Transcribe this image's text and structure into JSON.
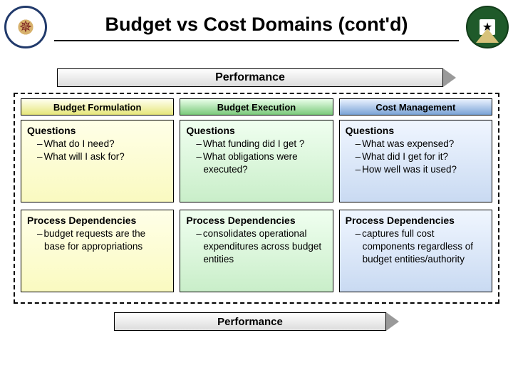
{
  "title": "Budget vs Cost Domains (cont'd)",
  "performance_label": "Performance",
  "columns": [
    {
      "header": "Budget Formulation",
      "questions_label": "Questions",
      "questions": [
        "What do I need?",
        "What will I ask for?"
      ],
      "process_label": "Process Dependencies",
      "process": [
        "budget requests are the base for appropriations"
      ]
    },
    {
      "header": "Budget Execution",
      "questions_label": "Questions",
      "questions": [
        "What funding did I get ?",
        "What obligations were executed?"
      ],
      "process_label": "Process Dependencies",
      "process": [
        "consolidates operational expenditures across budget entities"
      ]
    },
    {
      "header": "Cost Management",
      "questions_label": "Questions",
      "questions": [
        "What was expensed?",
        "What did I get for it?",
        "How well was it used?"
      ],
      "process_label": "Process Dependencies",
      "process": [
        "captures full cost components regardless of budget entities/authority"
      ]
    }
  ],
  "styling": {
    "slide_size": [
      720,
      540
    ],
    "title_fontsize": 27,
    "header_bg": [
      "#fffff0→#e6e67a",
      "#eaffea→#7ac97a",
      "#eaf2ff→#7aa3d6"
    ],
    "block_bg": [
      "#ffffe8→#fafac0",
      "#f0fff0→#c9eec9",
      "#f0f6ff→#c9daf2"
    ],
    "perf_bar_gradient": "#fefefe→#dcdcdc",
    "dashed_border_color": "#000000",
    "body_fontsize": 13.5
  }
}
